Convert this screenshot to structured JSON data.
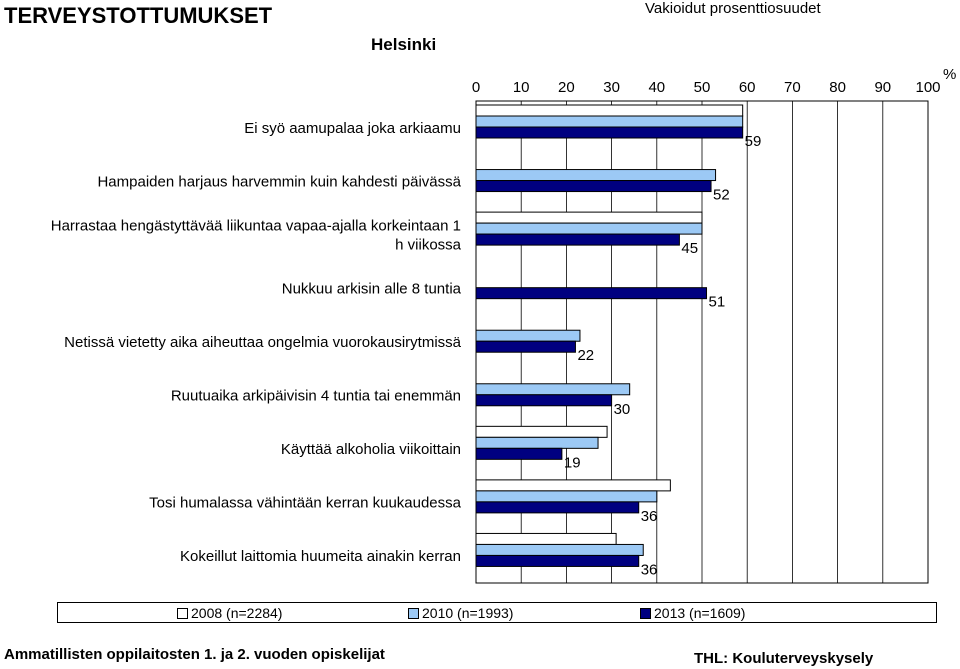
{
  "header": {
    "title": "TERVEYSTOTTUMUKSET",
    "subtitle": "Vakioidut prosenttiosuudet",
    "city": "Helsinki",
    "unit": "%"
  },
  "footer": {
    "left": "Ammatillisten oppilaitosten 1. ja 2. vuoden opiskelijat",
    "right": "THL: Kouluterveyskysely"
  },
  "colors": {
    "2008": "#ffffff",
    "2010": "#9cc9f5",
    "2013": "#000080"
  },
  "chart_data": {
    "type": "bar",
    "orientation": "horizontal",
    "xlim": [
      0,
      100
    ],
    "xticks": [
      0,
      10,
      20,
      30,
      40,
      50,
      60,
      70,
      80,
      90,
      100
    ],
    "grid": true,
    "legend_position": "bottom",
    "categories": [
      "Ei syö aamupalaa joka arkiaamu",
      "Hampaiden harjaus harvemmin kuin kahdesti päivässä",
      "Harrastaa hengästyttävää liikuntaa vapaa-ajalla korkeintaan 1 h viikossa",
      "Nukkuu arkisin alle 8 tuntia",
      "Netissä vietetty aika aiheuttaa ongelmia vuorokausirytmissä",
      "Ruutuaika arkipäivisin 4 tuntia tai enemmän",
      "Käyttää alkoholia viikoittain",
      "Tosi humalassa vähintään kerran kuukaudessa",
      "Kokeillut laittomia huumeita ainakin kerran"
    ],
    "category_lines": [
      [
        "Ei syö aamupalaa joka arkiaamu"
      ],
      [
        "Hampaiden harjaus harvemmin kuin kahdesti päivässä"
      ],
      [
        "Harrastaa hengästyttävää liikuntaa vapaa-ajalla korkeintaan 1",
        "h viikossa"
      ],
      [
        "Nukkuu arkisin alle 8 tuntia"
      ],
      [
        "Netissä vietetty aika aiheuttaa ongelmia vuorokausirytmissä"
      ],
      [
        "Ruutuaika arkipäivisin 4 tuntia tai enemmän"
      ],
      [
        "Käyttää alkoholia viikoittain"
      ],
      [
        "Tosi humalassa vähintään kerran kuukaudessa"
      ],
      [
        "Kokeillut laittomia huumeita ainakin kerran"
      ]
    ],
    "series": [
      {
        "name": "2008 (n=2284)",
        "values": [
          59,
          null,
          50,
          null,
          null,
          null,
          29,
          43,
          31
        ]
      },
      {
        "name": "2010 (n=1993)",
        "values": [
          59,
          53,
          50,
          null,
          23,
          34,
          27,
          40,
          37
        ]
      },
      {
        "name": "2013 (n=1609)",
        "values": [
          59,
          52,
          45,
          51,
          22,
          30,
          19,
          36,
          36
        ]
      }
    ],
    "data_labels": [
      "59",
      "52",
      "45",
      "51",
      "22",
      "30",
      "19",
      "36",
      "36"
    ]
  }
}
